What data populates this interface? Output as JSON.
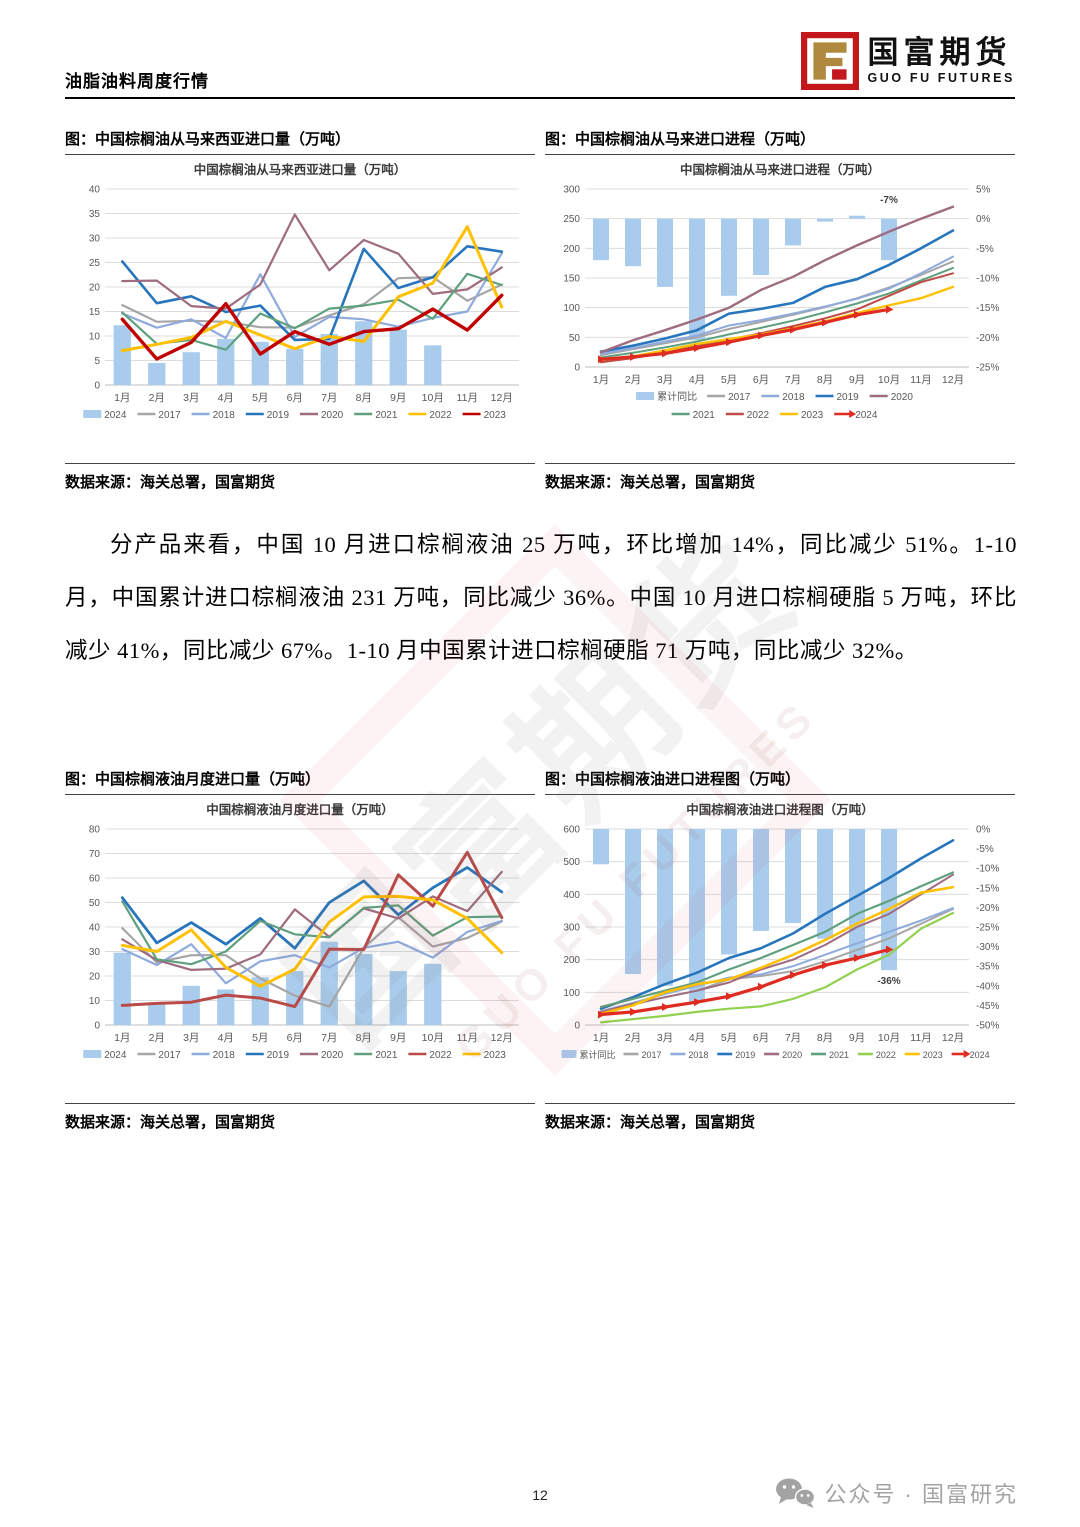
{
  "header": {
    "doc_title": "油脂油料周度行情",
    "logo_cn": "国富期货",
    "logo_en": "GUO FU FUTURES"
  },
  "watermark": {
    "cn": "国富期货",
    "en": "GUO FU FUTURES"
  },
  "paragraph": "分产品来看，中国 10 月进口棕榈液油 25 万吨，环比增加 14%，同比减少 51%。1-10 月，中国累计进口棕榈液油 231 万吨，同比减少 36%。中国 10 月进口棕榈硬脂 5 万吨，环比减少 41%，同比减少 67%。1-10 月中国累计进口棕榈硬脂 71 万吨，同比减少 32%。",
  "figures": [
    {
      "caption_title": "图：中国棕榈油从马来西亚进口量（万吨）",
      "source": "数据来源：海关总署，国富期货"
    },
    {
      "caption_title": "图：中国棕榈油从马来进口进程（万吨）",
      "source": "数据来源：海关总署，国富期货"
    },
    {
      "caption_title": "图：中国棕榈液油月度进口量（万吨）",
      "source": "数据来源：海关总署，国富期货"
    },
    {
      "caption_title": "图：中国棕榈液油进口进程图（万吨）",
      "source": "数据来源：海关总署，国富期货"
    }
  ],
  "footer": {
    "page_number": "12",
    "wechat_text": "公众号 · 国富研究"
  },
  "chart_data": [
    {
      "type": "bar+line",
      "title": "中国棕榈油从马来西亚进口量（万吨）",
      "categories": [
        "1月",
        "2月",
        "3月",
        "4月",
        "5月",
        "6月",
        "7月",
        "8月",
        "9月",
        "10月",
        "11月",
        "12月"
      ],
      "left_axis": {
        "min": 0,
        "max": 40,
        "step": 5
      },
      "bars": {
        "name": "2024",
        "color": "#A9CCEC",
        "values": [
          12.2,
          4.5,
          6.7,
          9.4,
          8.8,
          7.4,
          10.4,
          13,
          11.3,
          8.1,
          null,
          null
        ]
      },
      "series": [
        {
          "name": "2017",
          "color": "#A6A6A6",
          "values": [
            16.3,
            12.9,
            13.1,
            12.9,
            11.8,
            11.7,
            14.2,
            16.5,
            21.8,
            22,
            17.2,
            20.5
          ]
        },
        {
          "name": "2018",
          "color": "#8FAADC",
          "values": [
            14.6,
            11.7,
            13.4,
            9.6,
            22.6,
            9.8,
            13.9,
            13.4,
            11.9,
            13.7,
            15,
            26.9
          ]
        },
        {
          "name": "2019",
          "color": "#2775BC",
          "width": 2.6,
          "values": [
            25.2,
            16.7,
            18.1,
            14.9,
            16.2,
            9.2,
            9.4,
            27.8,
            19.8,
            22,
            28.3,
            27.2
          ]
        },
        {
          "name": "2020",
          "color": "#9E6B80",
          "values": [
            21.2,
            21.3,
            16.1,
            15.6,
            20.5,
            34.8,
            23.4,
            29.6,
            26.8,
            18.6,
            19.5,
            24
          ]
        },
        {
          "name": "2021",
          "color": "#5FA07E",
          "values": [
            14.8,
            8.4,
            9.2,
            7.2,
            14.6,
            11.6,
            15.6,
            16.2,
            17.4,
            13.5,
            22.7,
            20.4
          ]
        },
        {
          "name": "2022",
          "color": "#FFC000",
          "width": 3,
          "values": [
            7,
            8.3,
            9.7,
            13,
            10.2,
            7.4,
            9.9,
            8.9,
            18,
            20.8,
            32.3,
            15.9
          ]
        },
        {
          "name": "2023",
          "color": "#C00000",
          "width": 3.4,
          "values": [
            13.4,
            5.3,
            8.7,
            16.6,
            6.3,
            10.9,
            8.3,
            10.9,
            11.5,
            15.5,
            11.2,
            18.3
          ]
        }
      ]
    },
    {
      "type": "bar+line",
      "title": "中国棕榈油从马来进口进程（万吨）",
      "categories": [
        "1月",
        "2月",
        "3月",
        "4月",
        "5月",
        "6月",
        "7月",
        "8月",
        "9月",
        "10月",
        "11月",
        "12月"
      ],
      "left_axis": {
        "min": 0,
        "max": 300,
        "step": 50
      },
      "right_axis": {
        "min": -25,
        "max": 5,
        "step": 5
      },
      "bars": {
        "name": "累计同比",
        "color": "#A9CCEC",
        "axis": "right",
        "anchor": 0,
        "values": [
          -7,
          -8,
          -11.5,
          -20.5,
          -13,
          -9.5,
          -4.5,
          -0.5,
          0.5,
          -7,
          null,
          null
        ]
      },
      "series": [
        {
          "name": "2017",
          "color": "#A6A6A6",
          "width": 2,
          "values": [
            20,
            30,
            40,
            50,
            64,
            76,
            88,
            101,
            116,
            134,
            155,
            178
          ]
        },
        {
          "name": "2018",
          "color": "#8FAADC",
          "width": 2,
          "values": [
            22,
            32,
            43,
            53,
            70,
            79,
            90,
            102,
            115,
            132,
            158,
            186
          ]
        },
        {
          "name": "2019",
          "color": "#2775BC",
          "width": 2.6,
          "values": [
            26,
            36,
            48,
            62,
            90,
            98,
            108,
            135,
            148,
            172,
            200,
            230
          ]
        },
        {
          "name": "2020",
          "color": "#9E6B80",
          "width": 2.4,
          "values": [
            25,
            45,
            62,
            80,
            100,
            130,
            152,
            180,
            205,
            228,
            250,
            270
          ]
        },
        {
          "name": "2021",
          "color": "#5FA07E",
          "width": 2,
          "values": [
            16,
            24,
            33,
            43,
            55,
            66,
            78,
            92,
            107,
            124,
            146,
            167
          ]
        },
        {
          "name": "2022",
          "color": "#BE4B48",
          "width": 2,
          "values": [
            8,
            15,
            24,
            36,
            46,
            57,
            69,
            82,
            97,
            120,
            143,
            158
          ]
        },
        {
          "name": "2023",
          "color": "#FFC000",
          "width": 2.4,
          "values": [
            12,
            18,
            28,
            39,
            47,
            55,
            65,
            77,
            91,
            104,
            116,
            135
          ]
        },
        {
          "name": "2024",
          "color": "#E02B20",
          "width": 3.2,
          "arrow": true,
          "values": [
            13,
            17,
            23,
            32,
            42,
            53,
            63,
            75,
            88,
            97,
            null,
            null
          ]
        }
      ],
      "legend_rows": [
        5,
        4
      ],
      "annotation": {
        "text": "-7%",
        "index": 9,
        "axis": "right",
        "value": 2.6
      }
    },
    {
      "type": "bar+line",
      "title": "中国棕榈液油月度进口量（万吨）",
      "categories": [
        "1月",
        "2月",
        "3月",
        "4月",
        "5月",
        "6月",
        "7月",
        "8月",
        "9月",
        "10月",
        "11月",
        "12月"
      ],
      "left_axis": {
        "min": 0,
        "max": 80,
        "step": 10
      },
      "bars": {
        "name": "2024",
        "color": "#A9CCEC",
        "values": [
          29.5,
          9,
          16,
          14.5,
          19.5,
          22,
          34,
          29,
          22,
          25,
          null,
          null
        ]
      },
      "series": [
        {
          "name": "2017",
          "color": "#A6A6A6",
          "values": [
            39.5,
            25.5,
            28.5,
            28.5,
            19,
            12,
            7.5,
            31.5,
            44,
            32,
            35.5,
            42.3
          ]
        },
        {
          "name": "2018",
          "color": "#8FAADC",
          "values": [
            31,
            24.5,
            33,
            17,
            26,
            28.5,
            23.5,
            31.5,
            34,
            27.5,
            38,
            42.5
          ]
        },
        {
          "name": "2019",
          "color": "#2775BC",
          "width": 2.8,
          "values": [
            52,
            33.5,
            41.8,
            33,
            43.5,
            31.3,
            50,
            58.8,
            45,
            56,
            64.3,
            54.3
          ]
        },
        {
          "name": "2020",
          "color": "#9E6B80",
          "values": [
            35,
            26.5,
            22.5,
            23,
            28.8,
            47.2,
            36,
            47.6,
            43.5,
            52.5,
            46.5,
            62.5
          ]
        },
        {
          "name": "2021",
          "color": "#5FA07E",
          "values": [
            50.5,
            26.8,
            24.8,
            30,
            42.5,
            37,
            35.8,
            47.8,
            48.8,
            36.5,
            44,
            44.3
          ]
        },
        {
          "name": "2022",
          "color": "#B94A48",
          "width": 3,
          "values": [
            8,
            8.8,
            9.3,
            12.2,
            11,
            7.5,
            31,
            30.8,
            61.3,
            48.5,
            70.5,
            43.8
          ]
        },
        {
          "name": "2023",
          "color": "#FFC000",
          "width": 3,
          "values": [
            32.5,
            30,
            38.8,
            23.5,
            15.8,
            22.8,
            42,
            52.3,
            52.5,
            51,
            43.5,
            29.5
          ]
        }
      ]
    },
    {
      "type": "bar+line",
      "title": "中国棕榈液油进口进程图（万吨）",
      "categories": [
        "1月",
        "2月",
        "3月",
        "4月",
        "5月",
        "6月",
        "7月",
        "8月",
        "9月",
        "10月",
        "11月",
        "12月"
      ],
      "left_axis": {
        "min": 0,
        "max": 600,
        "step": 100
      },
      "right_axis": {
        "min": -50,
        "max": 0,
        "step": 5
      },
      "bars": {
        "name": "累计同比",
        "color": "#A9CCEC",
        "axis": "right",
        "anchor": 0,
        "values": [
          -9,
          -37,
          -40,
          -44,
          -32,
          -26,
          -24,
          -28,
          -33,
          -36,
          null,
          null
        ]
      },
      "series": [
        {
          "name": "2017",
          "color": "#A6A6A6",
          "width": 2,
          "values": [
            40,
            62,
            85,
            105,
            140,
            150,
            165,
            195,
            230,
            265,
            310,
            355
          ]
        },
        {
          "name": "2018",
          "color": "#8FAADC",
          "width": 2,
          "values": [
            42,
            68,
            95,
            120,
            145,
            155,
            180,
            215,
            250,
            285,
            320,
            358
          ]
        },
        {
          "name": "2019",
          "color": "#2775BC",
          "width": 2.6,
          "values": [
            50,
            85,
            125,
            160,
            205,
            235,
            280,
            340,
            395,
            450,
            510,
            565
          ]
        },
        {
          "name": "2020",
          "color": "#9E6B80",
          "width": 2,
          "values": [
            40,
            65,
            85,
            105,
            130,
            170,
            200,
            245,
            300,
            340,
            400,
            460
          ]
        },
        {
          "name": "2021",
          "color": "#5FA07E",
          "width": 2.2,
          "values": [
            55,
            80,
            105,
            130,
            170,
            205,
            245,
            285,
            340,
            380,
            425,
            467
          ]
        },
        {
          "name": "2022",
          "color": "#92D050",
          "width": 2.2,
          "values": [
            8,
            18,
            28,
            40,
            50,
            57,
            80,
            115,
            170,
            215,
            295,
            343
          ]
        },
        {
          "name": "2023",
          "color": "#FFC000",
          "width": 2.6,
          "values": [
            35,
            60,
            100,
            125,
            140,
            175,
            215,
            260,
            310,
            355,
            405,
            422
          ]
        },
        {
          "name": "2024",
          "color": "#E02B20",
          "width": 3.2,
          "arrow": true,
          "values": [
            32,
            40,
            55,
            70,
            88,
            117,
            153,
            183,
            205,
            231,
            null,
            null
          ]
        }
      ],
      "legend_font": 9,
      "annotation": {
        "text": "-36%",
        "index": 9,
        "axis": "right",
        "value": -39.5
      }
    }
  ]
}
